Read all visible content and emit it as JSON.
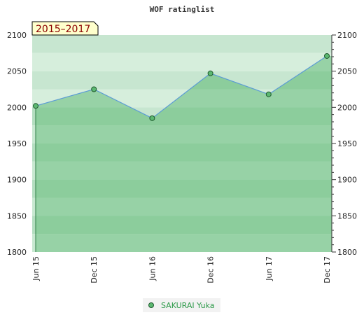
{
  "chart_data": {
    "type": "area",
    "title": "WOF ratinglist",
    "period_label": "2015–2017",
    "categories": [
      "Jun 15",
      "Dec 15",
      "Jun 16",
      "Dec 16",
      "Jun 17",
      "Dec 17"
    ],
    "series": [
      {
        "name": "SAKURAI Yuka",
        "values": [
          2002,
          2025,
          1985,
          2047,
          2018,
          2071
        ]
      }
    ],
    "y_ticks": [
      1800,
      1850,
      1900,
      1950,
      2000,
      2050,
      2100
    ],
    "ylim": [
      1800,
      2100
    ],
    "xlabel": "",
    "ylabel": "",
    "grid": true,
    "legend_position": "bottom-center"
  },
  "colors": {
    "line": "#5b9bd5",
    "marker_fill": "#5cb871",
    "marker_stroke": "#1f5a2e",
    "area_fill": "#5cb871",
    "band_dark": "#7ec694",
    "band_light": "#b4dec0",
    "period_bg": "#ffffcc",
    "legend_text": "#2e9a4a",
    "legend_bg": "#f2f2f2"
  }
}
